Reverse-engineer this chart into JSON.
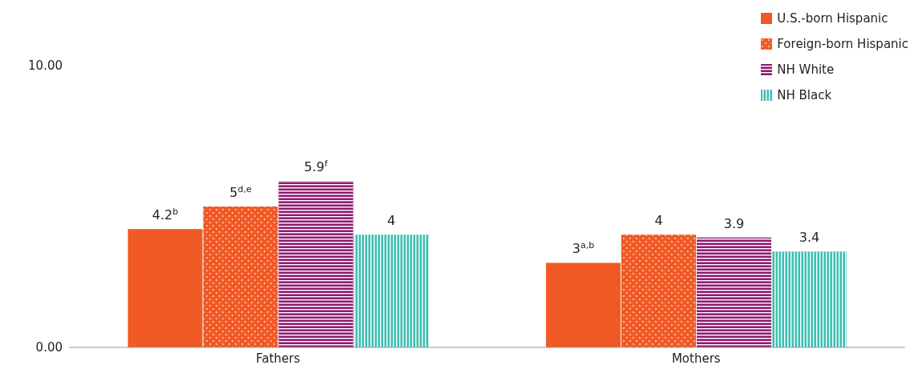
{
  "chart_data": {
    "type": "bar",
    "categories": [
      "Fathers",
      "Mothers"
    ],
    "series": [
      {
        "name": "U.S.-born Hispanic",
        "color": "#f15a24",
        "values": [
          4.2,
          3
        ],
        "value_labels": [
          "4.2$^{b}$",
          "3$^{a,b}$"
        ]
      },
      {
        "name": "Foreign-born Hispanic",
        "color": "#f15a24",
        "values": [
          5,
          4
        ],
        "value_labels": [
          "5$^{d,e}$",
          "4"
        ]
      },
      {
        "name": "NH White",
        "color": "#8e1b6e",
        "values": [
          5.9,
          3.9
        ],
        "value_labels": [
          "5.9$^{f}$",
          "3.9"
        ]
      },
      {
        "name": "NH Black",
        "color": "#3dbfb1",
        "values": [
          4,
          3.4
        ],
        "value_labels": [
          "4",
          "3.4"
        ]
      }
    ],
    "ylim": [
      0,
      10
    ],
    "yticks": [
      {
        "value": 0,
        "label": "0.00"
      },
      {
        "value": 10,
        "label": "10.00"
      }
    ],
    "legend": "top right"
  }
}
